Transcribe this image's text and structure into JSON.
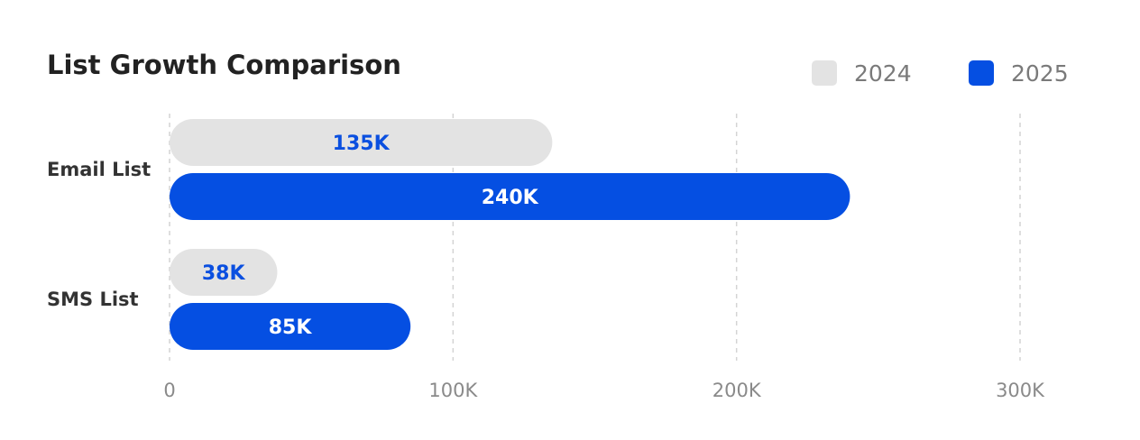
{
  "chart_data": {
    "type": "bar",
    "orientation": "horizontal",
    "title": "List Growth Comparison",
    "categories": [
      "Email List",
      "SMS List"
    ],
    "series": [
      {
        "name": "2024",
        "values": [
          135,
          38
        ],
        "labels": [
          "135K",
          "38K"
        ],
        "color": "#e3e3e3",
        "label_color": "#0a4fe0"
      },
      {
        "name": "2025",
        "values": [
          240,
          85
        ],
        "labels": [
          "240K",
          "85K"
        ],
        "color": "#054fe2",
        "label_color": "#ffffff"
      }
    ],
    "xlim": [
      0,
      300
    ],
    "x_ticks": [
      0,
      100,
      200,
      300
    ],
    "x_tick_labels": [
      "0",
      "100K",
      "200K",
      "300K"
    ],
    "grid": "vertical dashed",
    "legend_position": "top-right"
  }
}
